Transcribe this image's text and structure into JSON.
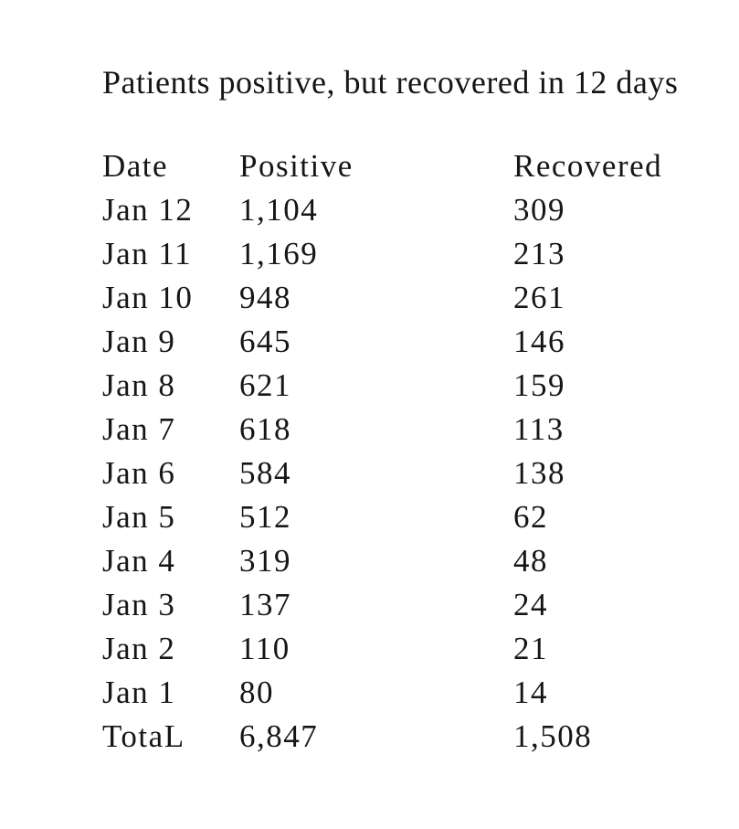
{
  "title": "Patients positive, but recovered in 12 days",
  "table": {
    "headers": [
      "Date",
      "Positive",
      "Recovered"
    ],
    "rows": [
      [
        "Jan 12",
        "1,104",
        "309"
      ],
      [
        "Jan 11",
        "1,169",
        "213"
      ],
      [
        "Jan 10",
        "948",
        "261"
      ],
      [
        "Jan 9",
        "645",
        "146"
      ],
      [
        "Jan 8",
        "621",
        "159"
      ],
      [
        "Jan 7",
        "618",
        "113"
      ],
      [
        "Jan 6",
        "584",
        "138"
      ],
      [
        "Jan 5",
        "512",
        "62"
      ],
      [
        "Jan 4",
        "319",
        "48"
      ],
      [
        "Jan 3",
        "137",
        "24"
      ],
      [
        "Jan 2",
        "110",
        "21"
      ],
      [
        "Jan 1",
        "80",
        "14"
      ],
      [
        "TotaL",
        "6,847",
        "1,508"
      ]
    ]
  },
  "colors": {
    "background": "#ffffff",
    "text": "#161616"
  },
  "chart_data": {
    "type": "table",
    "title": "Patients positive, but recovered in 12 days",
    "columns": [
      "Date",
      "Positive",
      "Recovered"
    ],
    "categories": [
      "Jan 12",
      "Jan 11",
      "Jan 10",
      "Jan 9",
      "Jan 8",
      "Jan 7",
      "Jan 6",
      "Jan 5",
      "Jan 4",
      "Jan 3",
      "Jan 2",
      "Jan 1"
    ],
    "series": [
      {
        "name": "Positive",
        "values": [
          1104,
          1169,
          948,
          645,
          621,
          618,
          584,
          512,
          319,
          137,
          110,
          80
        ],
        "total": 6847
      },
      {
        "name": "Recovered",
        "values": [
          309,
          213,
          261,
          146,
          159,
          113,
          138,
          62,
          48,
          24,
          21,
          14
        ],
        "total": 1508
      }
    ],
    "total_row_label": "TotaL"
  }
}
